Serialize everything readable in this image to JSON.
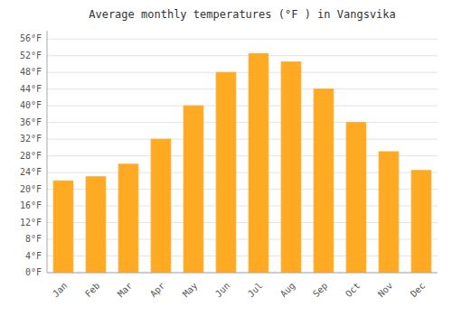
{
  "chart_data": {
    "type": "bar",
    "title": "Average monthly temperatures (°F ) in Vangsvika",
    "categories": [
      "Jan",
      "Feb",
      "Mar",
      "Apr",
      "May",
      "Jun",
      "Jul",
      "Aug",
      "Sep",
      "Oct",
      "Nov",
      "Dec"
    ],
    "values": [
      22,
      23,
      26,
      32,
      40,
      48,
      52.5,
      50.5,
      44,
      36,
      29,
      24.5
    ],
    "color": "#FFAA22",
    "ylim": [
      0,
      58
    ],
    "yticks": [
      {
        "value": 0,
        "label": "0°F"
      },
      {
        "value": 4,
        "label": "4°F"
      },
      {
        "value": 8,
        "label": "8°F"
      },
      {
        "value": 12,
        "label": "12°F"
      },
      {
        "value": 16,
        "label": "16°F"
      },
      {
        "value": 20,
        "label": "20°F"
      },
      {
        "value": 24,
        "label": "24°F"
      },
      {
        "value": 28,
        "label": "28°F"
      },
      {
        "value": 32,
        "label": "32°F"
      },
      {
        "value": 36,
        "label": "36°F"
      },
      {
        "value": 40,
        "label": "40°F"
      },
      {
        "value": 44,
        "label": "44°F"
      },
      {
        "value": 48,
        "label": "48°F"
      },
      {
        "value": 52,
        "label": "52°F"
      },
      {
        "value": 56,
        "label": "56°F"
      }
    ],
    "grid": true
  }
}
